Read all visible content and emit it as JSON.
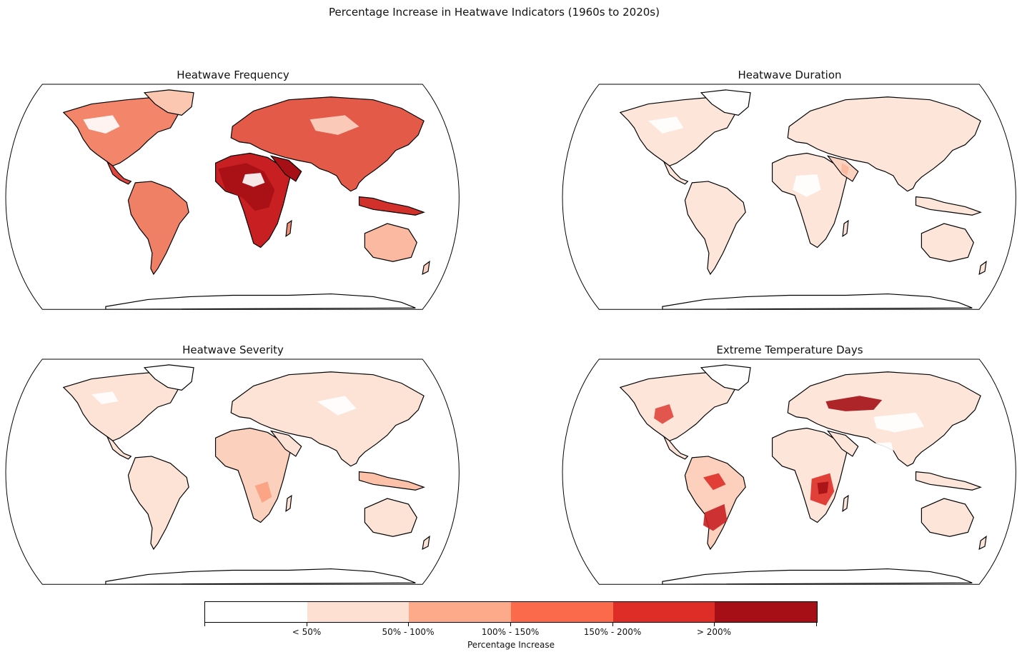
{
  "suptitle": "Percentage Increase in Heatwave Indicators (1960s to 2020s)",
  "panels": [
    {
      "title": "Heatwave Frequency"
    },
    {
      "title": "Heatwave Duration"
    },
    {
      "title": "Heatwave Severity"
    },
    {
      "title": "Extreme Temperature Days"
    }
  ],
  "colorbar": {
    "title": "Percentage Increase",
    "classes": [
      "< 50%",
      "50% - 100%",
      "100% - 150%",
      "150% - 200%",
      "> 200%"
    ],
    "colors": [
      "#ffffff",
      "#fee0d2",
      "#fcaa8a",
      "#fb6a4a",
      "#de2d26",
      "#a50f15"
    ]
  }
}
